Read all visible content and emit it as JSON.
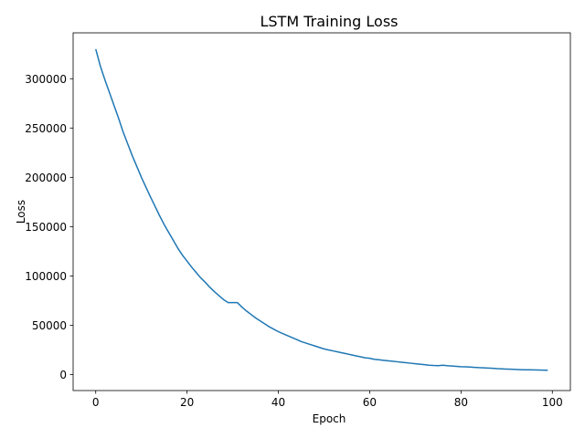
{
  "chart_data": {
    "type": "line",
    "title": "LSTM Training Loss",
    "xlabel": "Epoch",
    "ylabel": "Loss",
    "xlim": [
      -4.95,
      103.95
    ],
    "ylim": [
      -16200,
      346500
    ],
    "x_ticks": [
      0,
      20,
      40,
      60,
      80,
      100
    ],
    "y_ticks": [
      0,
      50000,
      100000,
      150000,
      200000,
      250000,
      300000
    ],
    "grid": false,
    "legend": "none",
    "series": [
      {
        "color": "#1f77b4",
        "x": [
          0,
          1,
          2,
          3,
          4,
          5,
          6,
          7,
          8,
          9,
          10,
          11,
          12,
          13,
          14,
          15,
          16,
          17,
          18,
          19,
          20,
          21,
          22,
          23,
          24,
          25,
          26,
          27,
          28,
          29,
          30,
          31,
          32,
          33,
          34,
          35,
          36,
          37,
          38,
          39,
          40,
          41,
          42,
          43,
          44,
          45,
          46,
          47,
          48,
          49,
          50,
          51,
          52,
          53,
          54,
          55,
          56,
          57,
          58,
          59,
          60,
          61,
          62,
          63,
          64,
          65,
          66,
          67,
          68,
          69,
          70,
          71,
          72,
          73,
          74,
          75,
          76,
          77,
          78,
          79,
          80,
          81,
          82,
          83,
          84,
          85,
          86,
          87,
          88,
          89,
          90,
          91,
          92,
          93,
          94,
          95,
          96,
          97,
          98,
          99
        ],
        "y": [
          330000,
          313000,
          299000,
          286000,
          273000,
          260000,
          246000,
          234000,
          222000,
          211000,
          200000,
          190000,
          180000,
          170500,
          161000,
          152000,
          144000,
          136000,
          128000,
          121000,
          115000,
          109000,
          103500,
          98000,
          93500,
          88500,
          84000,
          80000,
          76000,
          73000,
          73000,
          73000,
          68500,
          64500,
          61000,
          57500,
          54500,
          51500,
          48500,
          46000,
          43500,
          41500,
          39500,
          37500,
          35500,
          33500,
          32000,
          30500,
          29000,
          27500,
          26000,
          25000,
          24000,
          23000,
          22000,
          21000,
          20000,
          19000,
          18000,
          17000,
          16500,
          15500,
          15000,
          14500,
          14000,
          13500,
          13000,
          12500,
          12000,
          11500,
          11000,
          10500,
          10000,
          9500,
          9200,
          9000,
          9500,
          9000,
          8700,
          8300,
          8000,
          7800,
          7600,
          7300,
          7000,
          6800,
          6600,
          6300,
          6000,
          5800,
          5600,
          5400,
          5200,
          5000,
          4900,
          4800,
          4700,
          4600,
          4500,
          4400
        ]
      }
    ]
  }
}
